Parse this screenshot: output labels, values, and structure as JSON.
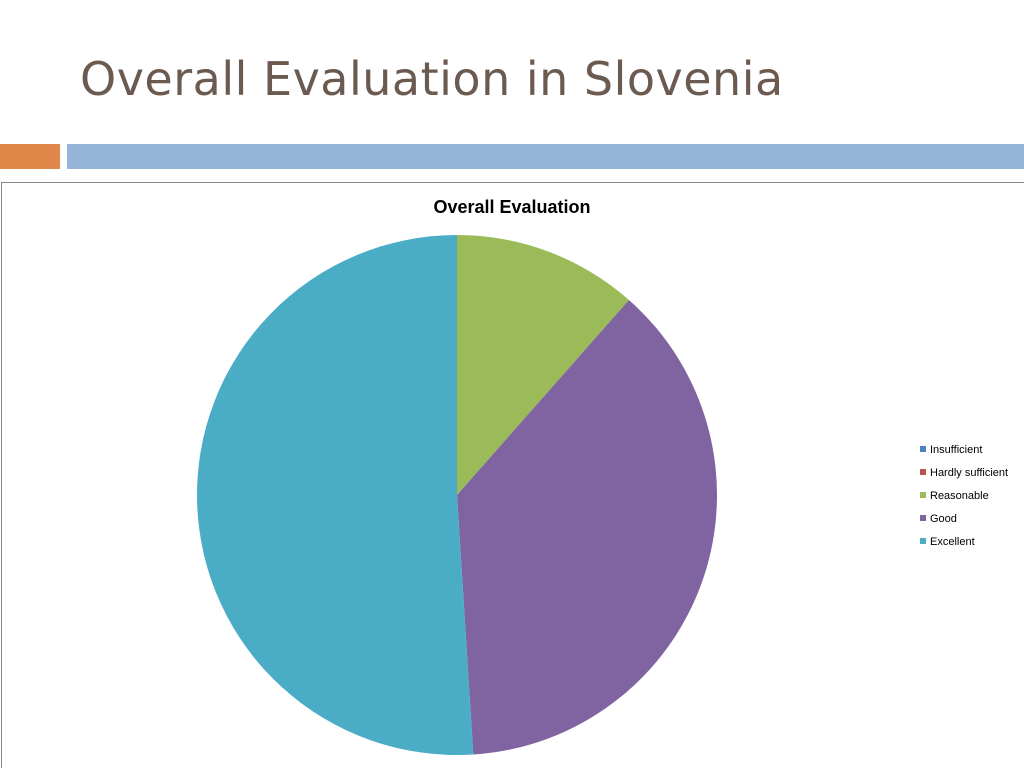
{
  "slide": {
    "title": "Overall Evaluation in Slovenia",
    "accent_colors": [
      "#e0884a",
      "#95b6d6"
    ]
  },
  "chart_data": {
    "type": "pie",
    "title": "Overall Evaluation",
    "legend_position": "right",
    "categories": [
      "Insufficient",
      "Hardly sufficient",
      "Reasonable",
      "Good",
      "Excellent"
    ],
    "values": [
      0,
      0,
      11.5,
      37.5,
      51
    ],
    "colors": [
      "#4f81bd",
      "#c0504d",
      "#9bbb59",
      "#8064a2",
      "#4bacc6"
    ]
  }
}
